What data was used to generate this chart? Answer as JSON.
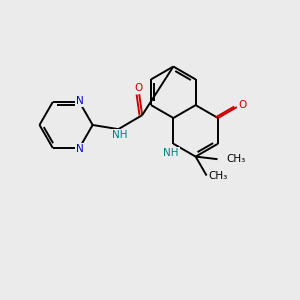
{
  "bg_color": "#ebebeb",
  "bond_color": "#000000",
  "N_color": "#0000cc",
  "O_color": "#cc0000",
  "NH_color": "#008080",
  "line_width": 1.4,
  "figsize": [
    3.0,
    3.0
  ],
  "dpi": 100,
  "xlim": [
    0,
    10
  ],
  "ylim": [
    0,
    10
  ]
}
